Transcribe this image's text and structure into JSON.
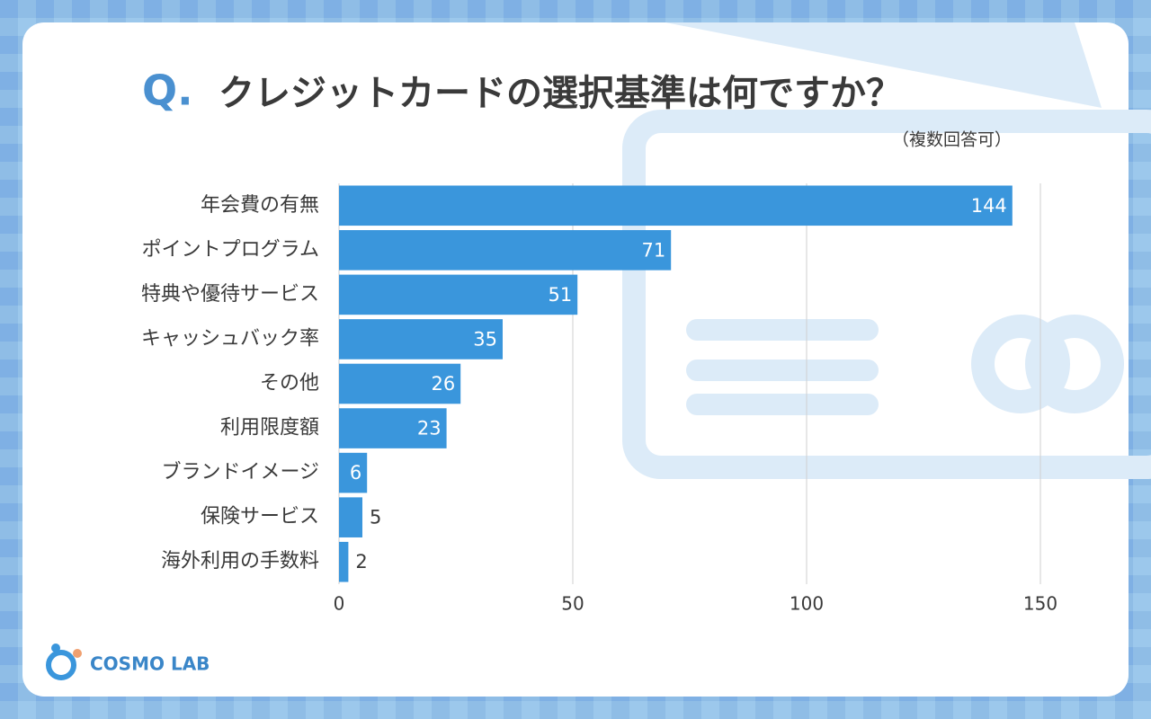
{
  "chart_data": {
    "type": "bar",
    "orientation": "horizontal",
    "marker": "Q.",
    "title": "クレジットカードの選択基準は何ですか？",
    "subtitle": "（複数回答可）",
    "categories": [
      "年会費の有無",
      "ポイントプログラム",
      "特典や優待サービス",
      "キャッシュバック率",
      "その他",
      "利用限度額",
      "ブランドイメージ",
      "保険サービス",
      "海外利用の手数料"
    ],
    "values": [
      144,
      71,
      51,
      35,
      26,
      23,
      6,
      5,
      2
    ],
    "color": "#3a96dc",
    "xlim": [
      0,
      165
    ],
    "xticks": [
      0,
      50,
      100,
      150
    ],
    "grid": true,
    "logo": "COSMO LAB"
  }
}
